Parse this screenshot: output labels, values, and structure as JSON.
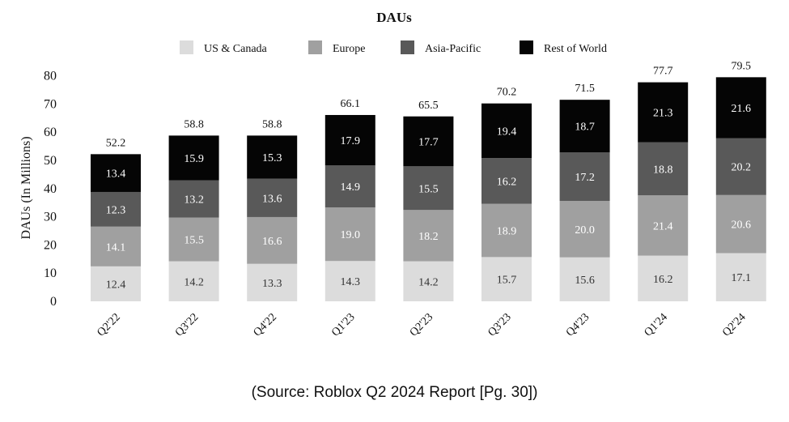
{
  "chart_data": {
    "type": "bar",
    "stacked": true,
    "title": "DAUs",
    "ylabel": "DAUs (In Millions)",
    "xlabel": "",
    "ylim": [
      0,
      80
    ],
    "yticks": [
      0,
      10,
      20,
      30,
      40,
      50,
      60,
      70,
      80
    ],
    "grid": false,
    "legend_position": "top",
    "categories": [
      "Q2'22",
      "Q3'22",
      "Q4'22",
      "Q1'23",
      "Q2'23",
      "Q3'23",
      "Q4'23",
      "Q1'24",
      "Q2'24"
    ],
    "series": [
      {
        "name": "US & Canada",
        "color": "#dcdcdc",
        "label_color": "#333333",
        "values": [
          12.4,
          14.2,
          13.3,
          14.3,
          14.2,
          15.7,
          15.6,
          16.2,
          17.1
        ]
      },
      {
        "name": "Europe",
        "color": "#a0a0a0",
        "label_color": "#ffffff",
        "values": [
          14.1,
          15.5,
          16.6,
          19.0,
          18.2,
          18.9,
          20.0,
          21.4,
          20.6
        ]
      },
      {
        "name": "Asia-Pacific",
        "color": "#595959",
        "label_color": "#ffffff",
        "values": [
          12.3,
          13.2,
          13.6,
          14.9,
          15.5,
          16.2,
          17.2,
          18.8,
          20.2
        ]
      },
      {
        "name": "Rest of World",
        "color": "#050505",
        "label_color": "#ffffff",
        "values": [
          13.4,
          15.9,
          15.3,
          17.9,
          17.7,
          19.4,
          18.7,
          21.3,
          21.6
        ]
      }
    ],
    "totals": [
      52.2,
      58.8,
      58.8,
      66.1,
      65.5,
      70.2,
      71.5,
      77.7,
      79.5
    ]
  },
  "source_note": "(Source: Roblox Q2 2024 Report [Pg. 30])"
}
